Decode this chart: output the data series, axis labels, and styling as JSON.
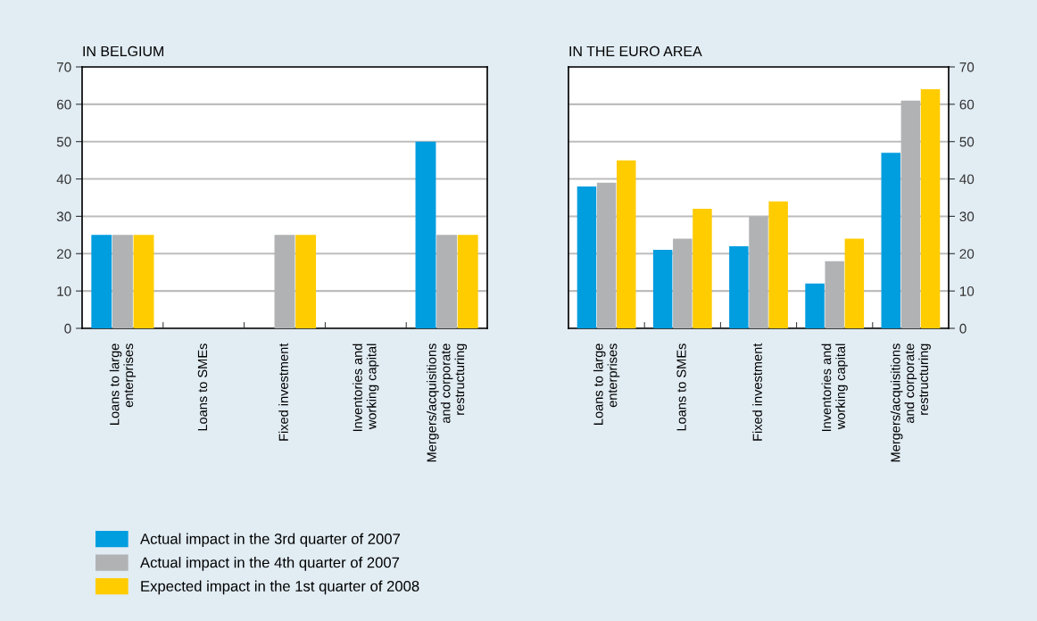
{
  "chart_data": [
    {
      "type": "bar",
      "title": "IN BELGIUM",
      "categories": [
        "Loans to large\nenterprises",
        "Loans to SMEs",
        "Fixed investment",
        "Inventories and\nworking capital",
        "Mergers/acquisitions\nand corporate\nrestructuring"
      ],
      "ylim": [
        0,
        70
      ],
      "yticks": [
        0,
        10,
        20,
        30,
        40,
        50,
        60,
        70
      ],
      "grid": "y",
      "legend": "bottom",
      "series": [
        {
          "name": "Actual impact in the 3rd quarter of 2007",
          "color": "#009ddf",
          "values": [
            25,
            0,
            0,
            0,
            50
          ]
        },
        {
          "name": "Actual impact in the 4th quarter of 2007",
          "color": "#b1b2b4",
          "values": [
            25,
            0,
            25,
            0,
            25
          ]
        },
        {
          "name": "Expected impact in the 1st quarter of 2008",
          "color": "#ffcc00",
          "values": [
            25,
            0,
            25,
            0,
            25
          ]
        }
      ]
    },
    {
      "type": "bar",
      "title": "IN THE EURO AREA",
      "categories": [
        "Loans to large\nenterprises",
        "Loans to SMEs",
        "Fixed investment",
        "Inventories and\nworking capital",
        "Mergers/acquisitions\nand corporate\nrestructuring"
      ],
      "ylim": [
        0,
        70
      ],
      "yticks": [
        0,
        10,
        20,
        30,
        40,
        50,
        60,
        70
      ],
      "grid": "y",
      "series": [
        {
          "color": "#009ddf",
          "values": [
            38,
            21,
            22,
            12,
            47
          ]
        },
        {
          "color": "#b1b2b4",
          "values": [
            39,
            24,
            30,
            18,
            61
          ]
        },
        {
          "color": "#ffcc00",
          "values": [
            45,
            32,
            34,
            24,
            64
          ]
        }
      ]
    }
  ]
}
